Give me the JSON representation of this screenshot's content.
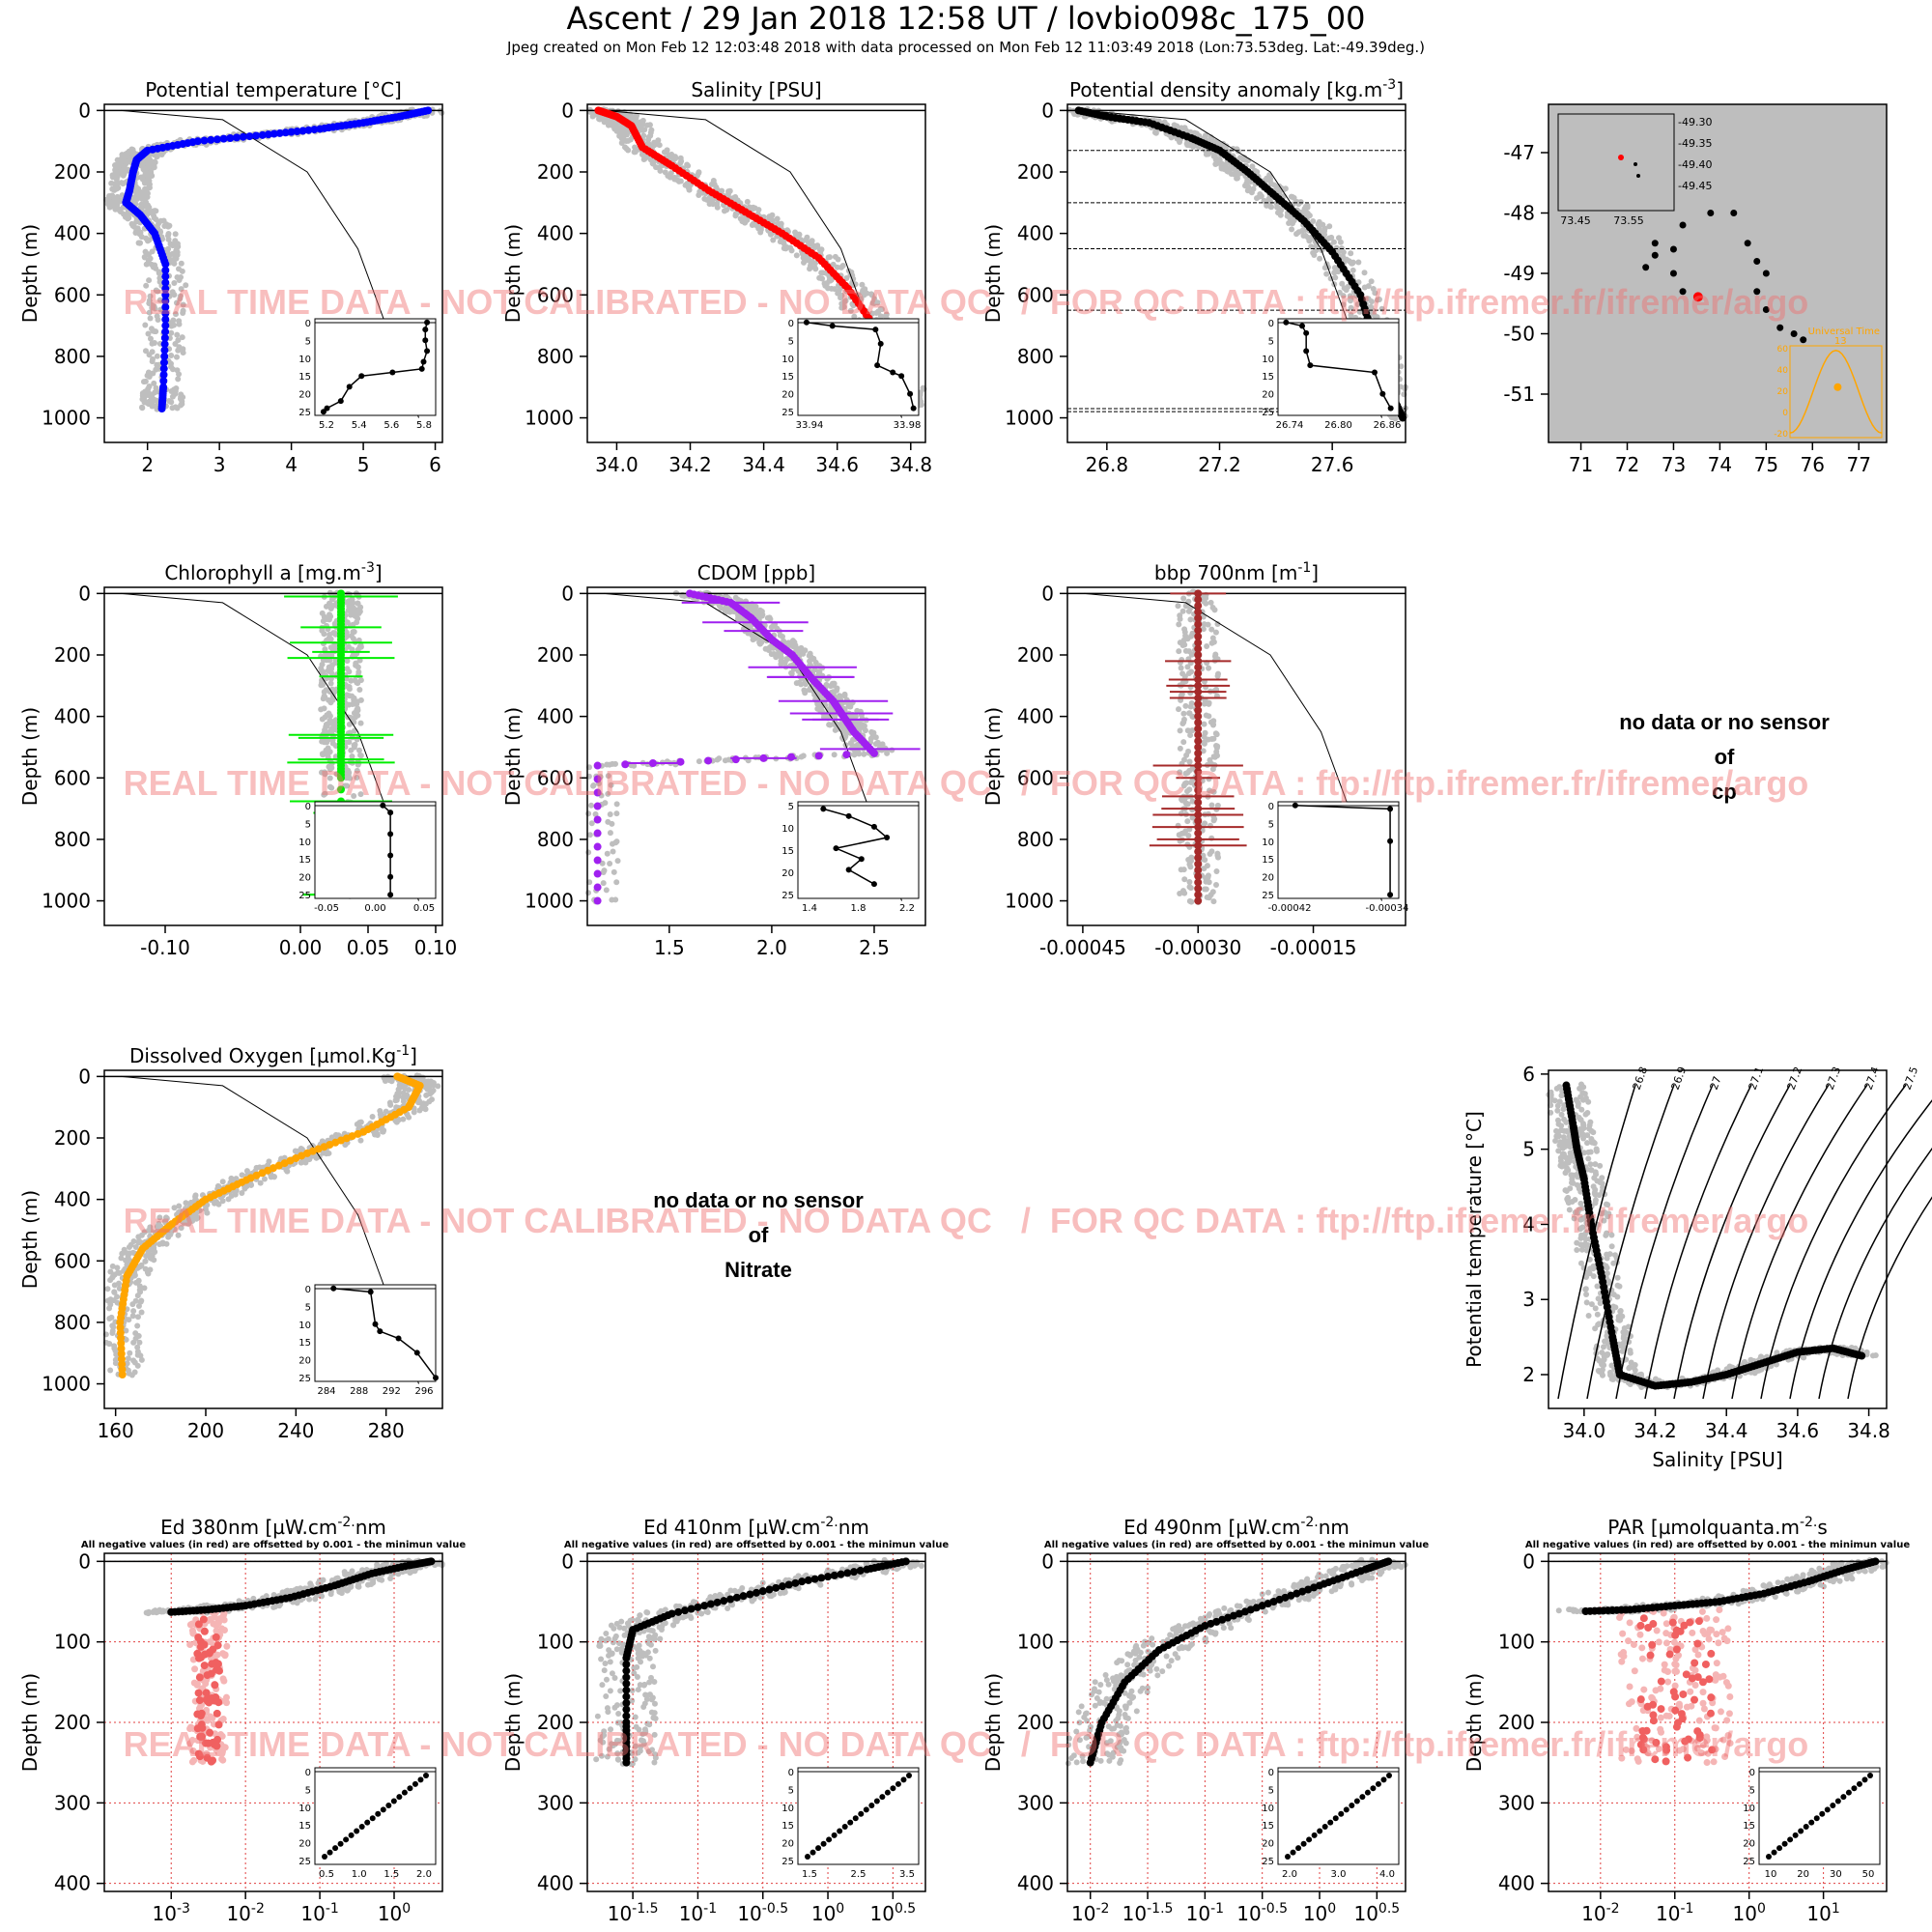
{
  "header": {
    "title": "Ascent / 29 Jan 2018 12:58 UT /  lovbio098c_175_00",
    "subtitle": "Jpeg created on Mon Feb 12 12:03:48 2018 with data processed on Mon Feb 12 11:03:49 2018 (Lon:73.53deg. Lat:-49.39deg.)"
  },
  "watermark": "REAL TIME DATA - NOT CALIBRATED - NO DATA QC   /  FOR QC DATA : ftp://ftp.ifremer.fr/ifremer/argo",
  "colors": {
    "envelope": "#bebebe",
    "temperature": "#0000ff",
    "salinity": "#ff0000",
    "density": "#000000",
    "chlorophyll": "#00ee00",
    "cdom": "#a020f0",
    "bbp": "#a52a2a",
    "oxygen": "#ffa500",
    "negative": "#f06060",
    "watermark": "#f08080"
  },
  "no_data": [
    {
      "line1": "no data or no sensor",
      "line2": "of",
      "line3": "cp"
    },
    {
      "line1": "no data or no sensor",
      "line2": "of",
      "line3": "Nitrate"
    }
  ],
  "chart_data": [
    {
      "id": "temp",
      "type": "scatter",
      "title": "Potential temperature [°C]",
      "ylabel": "Depth (m)",
      "xlim": [
        1.4,
        6.1
      ],
      "ylim": [
        1080,
        -20
      ],
      "xticks": [
        "2",
        "3",
        "4",
        "5",
        "6"
      ],
      "yticks": [
        "0",
        "200",
        "400",
        "600",
        "800",
        "1000"
      ],
      "color": "temperature",
      "x": [
        5.9,
        5.5,
        5.0,
        4.4,
        3.6,
        2.7,
        2.0,
        1.85,
        1.8,
        1.75,
        1.7,
        1.9,
        2.1,
        2.25,
        2.25,
        2.22,
        2.2
      ],
      "y": [
        0,
        20,
        40,
        60,
        80,
        100,
        130,
        160,
        200,
        260,
        300,
        340,
        400,
        500,
        700,
        900,
        970
      ],
      "inset": {
        "xticks": [
          "5.2",
          "5.4",
          "5.6",
          "5.8"
        ],
        "yticks": [
          "0",
          "5",
          "10",
          "15",
          "20",
          "25"
        ],
        "xlim": [
          5.15,
          5.85
        ],
        "ylim": [
          26,
          -1
        ],
        "x": [
          5.8,
          5.79,
          5.79,
          5.8,
          5.78,
          5.77,
          5.6,
          5.42,
          5.35,
          5.3,
          5.22,
          5.2
        ],
        "y": [
          0,
          2,
          5,
          8,
          11,
          13,
          14,
          15,
          18,
          22,
          24,
          25
        ]
      }
    },
    {
      "id": "sal",
      "type": "scatter",
      "title": "Salinity [PSU]",
      "ylabel": "Depth (m)",
      "xlim": [
        33.92,
        34.84
      ],
      "ylim": [
        1080,
        -20
      ],
      "xticks": [
        "34.0",
        "34.2",
        "34.4",
        "34.6",
        "34.8"
      ],
      "yticks": [
        "0",
        "200",
        "400",
        "600",
        "800",
        "1000"
      ],
      "color": "salinity",
      "x": [
        33.95,
        34.0,
        34.04,
        34.07,
        34.15,
        34.25,
        34.35,
        34.45,
        34.55,
        34.63,
        34.7,
        34.76,
        34.81
      ],
      "y": [
        0,
        20,
        50,
        120,
        180,
        260,
        330,
        400,
        480,
        580,
        700,
        850,
        980
      ],
      "inset": {
        "xticks": [
          "33.94",
          "33.98"
        ],
        "yticks": [
          "0",
          "5",
          "10",
          "15",
          "20",
          "25"
        ],
        "xlim": [
          33.93,
          34.0
        ],
        "ylim": [
          26,
          -1
        ],
        "x": [
          33.935,
          33.95,
          33.975,
          33.978,
          33.976,
          33.985,
          33.99,
          33.995,
          33.997
        ],
        "y": [
          0,
          1,
          2,
          6,
          12,
          14,
          15,
          20,
          24
        ]
      }
    },
    {
      "id": "dens",
      "type": "scatter",
      "title": "Potential density anomaly [kg.m^-3]",
      "ylabel": "Depth (m)",
      "xlim": [
        26.66,
        27.86
      ],
      "ylim": [
        1080,
        -20
      ],
      "xticks": [
        "26.8",
        "27.2",
        "27.6"
      ],
      "yticks": [
        "0",
        "200",
        "400",
        "600",
        "800",
        "1000"
      ],
      "color": "density",
      "mld_depths": [
        130,
        300,
        450,
        650,
        970,
        980
      ],
      "x": [
        26.7,
        26.8,
        26.95,
        27.1,
        27.2,
        27.3,
        27.4,
        27.5,
        27.6,
        27.7,
        27.75,
        27.8,
        27.85
      ],
      "y": [
        0,
        20,
        40,
        90,
        130,
        200,
        280,
        360,
        460,
        600,
        750,
        900,
        1000
      ],
      "inset": {
        "xticks": [
          "26.74",
          "26.80",
          "26.86"
        ],
        "yticks": [
          "0",
          "5",
          "10",
          "15",
          "20",
          "25"
        ],
        "xlim": [
          26.72,
          26.87
        ],
        "ylim": [
          26,
          -1
        ],
        "x": [
          26.73,
          26.75,
          26.755,
          26.755,
          26.76,
          26.84,
          26.85,
          26.86
        ],
        "y": [
          0,
          1,
          3,
          8,
          12,
          14,
          20,
          24
        ]
      }
    },
    {
      "id": "map",
      "type": "scatter",
      "title": "",
      "xlim": [
        70.3,
        77.6
      ],
      "ylim": [
        -51.8,
        -46.2
      ],
      "xticks": [
        "71",
        "72",
        "73",
        "74",
        "75",
        "76",
        "77"
      ],
      "yticks": [
        "-47",
        "-48",
        "-49",
        "-50",
        "-51"
      ],
      "track": [
        [
          73.2,
          -48.2
        ],
        [
          73.0,
          -48.6
        ],
        [
          72.6,
          -48.7
        ],
        [
          72.4,
          -48.9
        ],
        [
          72.6,
          -48.5
        ],
        [
          73.0,
          -49.0
        ],
        [
          73.2,
          -49.3
        ],
        [
          73.53,
          -49.39
        ],
        [
          73.8,
          -48.0
        ],
        [
          74.3,
          -48.0
        ],
        [
          74.6,
          -48.5
        ],
        [
          74.8,
          -48.8
        ],
        [
          75.0,
          -49.0
        ],
        [
          74.8,
          -49.3
        ],
        [
          75.0,
          -49.6
        ],
        [
          75.3,
          -49.9
        ],
        [
          75.6,
          -50.0
        ],
        [
          75.8,
          -50.1
        ]
      ],
      "inset": {
        "xticks": [
          "73.45",
          "73.55"
        ],
        "yticks": [
          "-49.30",
          "-49.35",
          "-49.40",
          "-49.45"
        ],
        "point": [
          73.53,
          -49.39
        ]
      },
      "solar_inset": {
        "label": "Universal Time",
        "xlabel_value": "13",
        "ylabel": "Solar Angle (deg)",
        "yticks": [
          "60",
          "40",
          "20",
          "0",
          "-20"
        ]
      }
    },
    {
      "id": "chla",
      "type": "scatter",
      "title": "Chlorophyll a [mg.m^-3]",
      "ylabel": "Depth (m)",
      "xlim": [
        -0.145,
        0.105
      ],
      "ylim": [
        1080,
        -20
      ],
      "xticks": [
        "-0.10",
        "0.00",
        "0.05",
        "0.10"
      ],
      "yticks": [
        "0",
        "200",
        "400",
        "600",
        "800",
        "1000"
      ],
      "color": "chlorophyll",
      "x": [
        0.03,
        0.03,
        0.03,
        0.03,
        0.03,
        0.03,
        0.03,
        0.03
      ],
      "y": [
        0,
        100,
        200,
        300,
        400,
        500,
        600,
        980
      ],
      "inset": {
        "xticks": [
          "-0.05",
          "0.00",
          "0.05"
        ],
        "yticks": [
          "0",
          "5",
          "10",
          "15",
          "20",
          "25"
        ],
        "xlim": [
          -0.07,
          0.09
        ],
        "ylim": [
          26,
          -1
        ],
        "x": [
          0.02,
          0.03,
          0.03,
          0.03,
          0.03,
          0.03
        ],
        "y": [
          0,
          2,
          8,
          14,
          20,
          25
        ]
      }
    },
    {
      "id": "cdom",
      "type": "scatter",
      "title": "CDOM [ppb]",
      "ylabel": "Depth (m)",
      "xlim": [
        1.1,
        2.75
      ],
      "ylim": [
        1080,
        -20
      ],
      "xticks": [
        "1.5",
        "2.0",
        "2.5"
      ],
      "yticks": [
        "0",
        "200",
        "400",
        "600",
        "800",
        "1000"
      ],
      "color": "cdom",
      "x": [
        1.6,
        1.8,
        1.9,
        2.0,
        2.1,
        2.2,
        2.3,
        2.35,
        2.4,
        2.5,
        1.15,
        1.15
      ],
      "y": [
        0,
        30,
        80,
        150,
        200,
        280,
        350,
        400,
        450,
        520,
        560,
        1000
      ],
      "inset": {
        "xticks": [
          "1.4",
          "1.8",
          "2.2"
        ],
        "yticks": [
          "5",
          "10",
          "15",
          "20",
          "25"
        ],
        "xlim": [
          1.3,
          2.25
        ],
        "ylim": [
          26,
          -1
        ],
        "x": [
          1.5,
          1.7,
          1.9,
          2.0,
          1.6,
          1.8,
          1.7,
          1.9
        ],
        "y": [
          1,
          3,
          6,
          9,
          12,
          15,
          18,
          22
        ]
      }
    },
    {
      "id": "bbp",
      "type": "scatter",
      "title": "bbp 700nm [m^-1]",
      "ylabel": "Depth (m)",
      "xlim": [
        -0.00047,
        -3e-05
      ],
      "ylim": [
        1080,
        -20
      ],
      "xticks": [
        "-0.00045",
        "-0.00030",
        "-0.00015"
      ],
      "yticks": [
        "0",
        "200",
        "400",
        "600",
        "800",
        "1000"
      ],
      "color": "bbp",
      "x": [
        -0.0003,
        -0.0003,
        -0.0003,
        -0.0003,
        -0.0003,
        -0.0003
      ],
      "y": [
        0,
        200,
        400,
        600,
        800,
        1000
      ],
      "inset": {
        "xticks": [
          "-0.00042",
          "-0.00034"
        ],
        "yticks": [
          "0",
          "5",
          "10",
          "15",
          "20",
          "25"
        ],
        "xlim": [
          -0.00044,
          -0.0003
        ],
        "ylim": [
          26,
          -1
        ],
        "x": [
          -0.00042,
          -0.00031,
          -0.00031,
          -0.00031
        ],
        "y": [
          0,
          1,
          10,
          25
        ]
      }
    },
    {
      "id": "oxy",
      "type": "scatter",
      "title": "Dissolved Oxygen [µmol.Kg^-1]",
      "ylabel": "Depth (m)",
      "xlim": [
        155,
        305
      ],
      "ylim": [
        1080,
        -20
      ],
      "xticks": [
        "160",
        "200",
        "240",
        "280"
      ],
      "yticks": [
        "0",
        "200",
        "400",
        "600",
        "800",
        "1000"
      ],
      "color": "oxygen",
      "x": [
        285,
        295,
        290,
        270,
        245,
        220,
        200,
        185,
        172,
        165,
        162,
        163
      ],
      "y": [
        0,
        30,
        100,
        180,
        250,
        330,
        400,
        480,
        560,
        650,
        800,
        970
      ],
      "inset": {
        "xticks": [
          "284",
          "288",
          "292",
          "296"
        ],
        "yticks": [
          "0",
          "5",
          "10",
          "15",
          "20",
          "25"
        ],
        "xlim": [
          283,
          296
        ],
        "ylim": [
          26,
          -1
        ],
        "x": [
          285,
          289,
          289.5,
          290,
          292,
          294,
          296
        ],
        "y": [
          0,
          1,
          10,
          12,
          14,
          18,
          25
        ]
      }
    },
    {
      "id": "ts",
      "type": "scatter",
      "title": "",
      "xlabel": "Salinity [PSU]",
      "ylabel": "Potential temperature [°C]",
      "xlim": [
        33.9,
        34.85
      ],
      "ylim": [
        1.55,
        6.05
      ],
      "xticks": [
        "34.0",
        "34.2",
        "34.4",
        "34.6",
        "34.8"
      ],
      "yticks": [
        "2",
        "3",
        "4",
        "5",
        "6"
      ],
      "isopycnals": [
        "26.8",
        "26.9",
        "27",
        "27.1",
        "27.2",
        "27.3",
        "27.4",
        "27.5",
        "27.6",
        "27.7",
        "27.8"
      ],
      "x": [
        33.95,
        33.97,
        33.98,
        34.0,
        34.02,
        34.05,
        34.08,
        34.1,
        34.2,
        34.3,
        34.4,
        34.5,
        34.6,
        34.7,
        34.78
      ],
      "y": [
        5.85,
        5.3,
        5.0,
        4.6,
        4.0,
        3.3,
        2.5,
        2.0,
        1.85,
        1.9,
        2.0,
        2.15,
        2.3,
        2.35,
        2.25
      ]
    },
    {
      "id": "ed380",
      "type": "scatter",
      "title": "Ed 380nm [µW.cm^-2.nm^-1]",
      "note": "All negative values (in red) are offsetted by 0.001 - the minimun value",
      "ylabel": "Depth (m)",
      "xscale": "log",
      "xlim": [
        -3.9,
        0.65
      ],
      "ylim": [
        410,
        -10
      ],
      "xticks": [
        "10^-3",
        "10^-2",
        "10^-1",
        "10^0"
      ],
      "yticks": [
        "0",
        "100",
        "200",
        "300",
        "400"
      ],
      "x": [
        0.5,
        0.2,
        -0.3,
        -0.8,
        -1.4,
        -2.0,
        -2.5,
        -3.0
      ],
      "y": [
        0,
        5,
        15,
        30,
        45,
        55,
        60,
        63
      ],
      "inset": {
        "xticks": [
          "0.5",
          "1.0",
          "1.5",
          "2.0"
        ],
        "yticks": [
          "0",
          "5",
          "10",
          "15",
          "20",
          "25"
        ]
      }
    },
    {
      "id": "ed410",
      "type": "scatter",
      "title": "Ed 410nm [µW.cm^-2.nm^-1]",
      "note": "All negative values (in red) are offsetted by 0.001 - the minimun value",
      "ylabel": "Depth (m)",
      "xscale": "log",
      "xlim": [
        -1.85,
        0.75
      ],
      "ylim": [
        410,
        -10
      ],
      "xticks": [
        "10^-1.5",
        "10^-1",
        "10^-0.5",
        "10^0",
        "10^0.5"
      ],
      "yticks": [
        "0",
        "100",
        "200",
        "300",
        "400"
      ],
      "x": [
        0.6,
        0.3,
        -0.2,
        -0.7,
        -1.2,
        -1.5,
        -1.55,
        -1.55,
        -1.55
      ],
      "y": [
        0,
        10,
        25,
        45,
        65,
        85,
        120,
        200,
        250
      ],
      "inset": {
        "xticks": [
          "1.5",
          "2.5",
          "3.5"
        ],
        "yticks": [
          "0",
          "5",
          "10",
          "15",
          "20",
          "25"
        ]
      }
    },
    {
      "id": "ed490",
      "type": "scatter",
      "title": "Ed 490nm [µW.cm^-2.nm^-1]",
      "note": "All negative values (in red) are offsetted by 0.001 - the minimun value",
      "ylabel": "Depth (m)",
      "xscale": "log",
      "xlim": [
        -2.2,
        0.75
      ],
      "ylim": [
        410,
        -10
      ],
      "xticks": [
        "10^-2",
        "10^-1.5",
        "10^-1",
        "10^-0.5",
        "10^0",
        "10^0.5"
      ],
      "yticks": [
        "0",
        "100",
        "200",
        "300",
        "400"
      ],
      "x": [
        0.6,
        0.4,
        0.0,
        -0.5,
        -1.0,
        -1.4,
        -1.7,
        -1.9,
        -2.0
      ],
      "y": [
        0,
        10,
        30,
        55,
        80,
        110,
        150,
        200,
        250
      ],
      "inset": {
        "xticks": [
          "2.0",
          "3.0",
          "4.0"
        ],
        "yticks": [
          "0",
          "5",
          "10",
          "15",
          "20",
          "25"
        ]
      }
    },
    {
      "id": "par",
      "type": "scatter",
      "title": "PAR [µmolquanta.m^-2.s^-1]",
      "note": "All negative values (in red) are offsetted by 0.001 - the minimun value",
      "ylabel": "Depth (m)",
      "xscale": "log",
      "xlim": [
        -2.7,
        1.85
      ],
      "ylim": [
        410,
        -10
      ],
      "xticks": [
        "10^-2",
        "10^-1",
        "10^0",
        "10^1"
      ],
      "yticks": [
        "0",
        "100",
        "200",
        "300",
        "400"
      ],
      "x": [
        1.7,
        1.3,
        0.8,
        0.2,
        -0.4,
        -1.0,
        -1.6,
        -2.2
      ],
      "y": [
        0,
        10,
        25,
        40,
        50,
        55,
        60,
        62
      ],
      "inset": {
        "xticks": [
          "10",
          "20",
          "30",
          "50"
        ],
        "yticks": [
          "0",
          "5",
          "10",
          "15",
          "20",
          "25"
        ]
      }
    }
  ]
}
